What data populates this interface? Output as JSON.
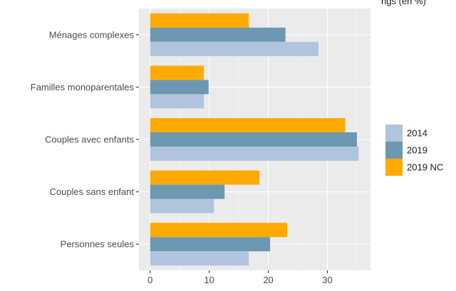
{
  "header": {
    "caption": "ngs (en %)"
  },
  "chart_data": {
    "type": "bar",
    "orientation": "horizontal",
    "categories": [
      "Ménages complexes",
      "Familles monoparentales",
      "Couples avec enfants",
      "Couples sans enfant",
      "Personnes seules"
    ],
    "series": [
      {
        "name": "2019 NC",
        "color": "#FFAA00",
        "values": [
          16.7,
          9.1,
          33.0,
          18.5,
          23.2
        ]
      },
      {
        "name": "2019",
        "color": "#6C98B1",
        "values": [
          22.9,
          9.9,
          35.0,
          12.6,
          20.3
        ]
      },
      {
        "name": "2014",
        "color": "#B0C4DE",
        "values": [
          28.5,
          9.1,
          35.3,
          10.8,
          16.7
        ]
      }
    ],
    "xticks": [
      0,
      10,
      20,
      30
    ],
    "xlim": [
      -1.9,
      37.3
    ],
    "legend": {
      "position": "right",
      "entries": [
        "2014",
        "2019",
        "2019 NC"
      ],
      "colors": [
        "#B0C4DE",
        "#6C98B1",
        "#FFAA00"
      ]
    },
    "grid": true,
    "panel_background": "#EBEBEB"
  }
}
